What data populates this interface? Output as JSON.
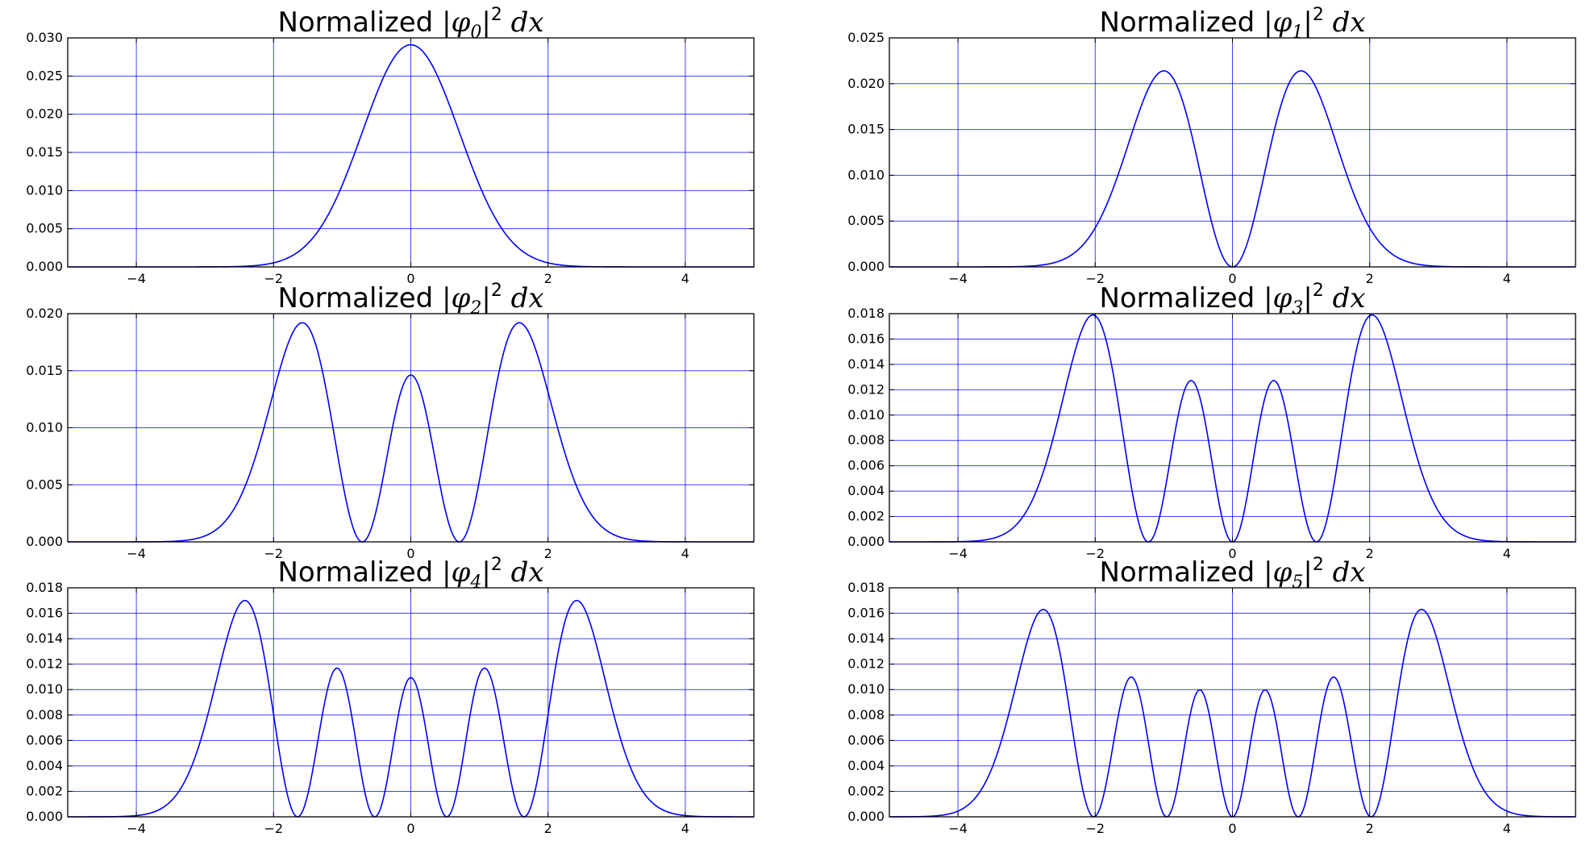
{
  "chart_data": [
    {
      "type": "line",
      "title": "Normalized |φ0|² dx",
      "title_parts": {
        "text": "Normalized",
        "symbol": "φ",
        "n": "0",
        "power": "2",
        "suffix": "dx"
      },
      "n": 0,
      "xlim": [
        -5,
        5
      ],
      "ylim": [
        0,
        0.03
      ],
      "x_ticks": [
        -4,
        -2,
        0,
        2,
        4
      ],
      "x_tick_labels": [
        "−4",
        "−2",
        "0",
        "2",
        "4"
      ],
      "y_ticks": [
        0.0,
        0.005,
        0.01,
        0.015,
        0.02,
        0.025,
        0.03
      ],
      "y_tick_labels": [
        "0.000",
        "0.005",
        "0.010",
        "0.015",
        "0.020",
        "0.025",
        "0.030"
      ],
      "peak": 0.0291,
      "grid": true,
      "line_color": "#0000ff",
      "series": [
        {
          "x_range": [
            -5,
            5
          ],
          "peaks": [
            [
              0,
              0.0291
            ]
          ]
        }
      ]
    },
    {
      "type": "line",
      "title": "Normalized |φ1|² dx",
      "title_parts": {
        "text": "Normalized",
        "symbol": "φ",
        "n": "1",
        "power": "2",
        "suffix": "dx"
      },
      "n": 1,
      "xlim": [
        -5,
        5
      ],
      "ylim": [
        0,
        0.025
      ],
      "x_ticks": [
        -4,
        -2,
        0,
        2,
        4
      ],
      "x_tick_labels": [
        "−4",
        "−2",
        "0",
        "2",
        "4"
      ],
      "y_ticks": [
        0.0,
        0.005,
        0.01,
        0.015,
        0.02,
        0.025
      ],
      "y_tick_labels": [
        "0.000",
        "0.005",
        "0.010",
        "0.015",
        "0.020",
        "0.025"
      ],
      "peak": 0.0214,
      "grid": true,
      "line_color": "#0000ff",
      "series": [
        {
          "x_range": [
            -5,
            5
          ],
          "peaks": [
            [
              -1.0,
              0.0214
            ],
            [
              1.0,
              0.0214
            ]
          ]
        }
      ]
    },
    {
      "type": "line",
      "title": "Normalized |φ2|² dx",
      "title_parts": {
        "text": "Normalized",
        "symbol": "φ",
        "n": "2",
        "power": "2",
        "suffix": "dx"
      },
      "n": 2,
      "xlim": [
        -5,
        5
      ],
      "ylim": [
        0,
        0.02
      ],
      "x_ticks": [
        -4,
        -2,
        0,
        2,
        4
      ],
      "x_tick_labels": [
        "−4",
        "−2",
        "0",
        "2",
        "4"
      ],
      "y_ticks": [
        0.0,
        0.005,
        0.01,
        0.015,
        0.02
      ],
      "y_tick_labels": [
        "0.000",
        "0.005",
        "0.010",
        "0.015",
        "0.020"
      ],
      "peak": 0.0192,
      "grid": true,
      "line_color": "#0000ff",
      "series": [
        {
          "x_range": [
            -5,
            5
          ],
          "peaks": [
            [
              -1.55,
              0.0192
            ],
            [
              0,
              0.0145
            ],
            [
              1.55,
              0.0192
            ]
          ]
        }
      ]
    },
    {
      "type": "line",
      "title": "Normalized |φ3|² dx",
      "title_parts": {
        "text": "Normalized",
        "symbol": "φ",
        "n": "3",
        "power": "2",
        "suffix": "dx"
      },
      "n": 3,
      "xlim": [
        -5,
        5
      ],
      "ylim": [
        0,
        0.018
      ],
      "x_ticks": [
        -4,
        -2,
        0,
        2,
        4
      ],
      "x_tick_labels": [
        "−4",
        "−2",
        "0",
        "2",
        "4"
      ],
      "y_ticks": [
        0.0,
        0.002,
        0.004,
        0.006,
        0.008,
        0.01,
        0.012,
        0.014,
        0.016,
        0.018
      ],
      "y_tick_labels": [
        "0.000",
        "0.002",
        "0.004",
        "0.006",
        "0.008",
        "0.010",
        "0.012",
        "0.014",
        "0.016",
        "0.018"
      ],
      "peak": 0.0179,
      "grid": true,
      "line_color": "#0000ff",
      "series": [
        {
          "x_range": [
            -5,
            5
          ],
          "peaks": [
            [
              -2.05,
              0.0179
            ],
            [
              -0.6,
              0.0127
            ],
            [
              0.6,
              0.0127
            ],
            [
              2.05,
              0.0179
            ]
          ]
        }
      ]
    },
    {
      "type": "line",
      "title": "Normalized |φ4|² dx",
      "title_parts": {
        "text": "Normalized",
        "symbol": "φ",
        "n": "4",
        "power": "2",
        "suffix": "dx"
      },
      "n": 4,
      "xlim": [
        -5,
        5
      ],
      "ylim": [
        0,
        0.018
      ],
      "x_ticks": [
        -4,
        -2,
        0,
        2,
        4
      ],
      "x_tick_labels": [
        "−4",
        "−2",
        "0",
        "2",
        "4"
      ],
      "y_ticks": [
        0.0,
        0.002,
        0.004,
        0.006,
        0.008,
        0.01,
        0.012,
        0.014,
        0.016,
        0.018
      ],
      "y_tick_labels": [
        "0.000",
        "0.002",
        "0.004",
        "0.006",
        "0.008",
        "0.010",
        "0.012",
        "0.014",
        "0.016",
        "0.018"
      ],
      "peak": 0.017,
      "grid": true,
      "line_color": "#0000ff",
      "series": [
        {
          "x_range": [
            -5,
            5
          ],
          "peaks": [
            [
              -2.45,
              0.017
            ],
            [
              -1.1,
              0.0117
            ],
            [
              0,
              0.0109
            ],
            [
              1.1,
              0.0117
            ],
            [
              2.45,
              0.017
            ]
          ]
        }
      ]
    },
    {
      "type": "line",
      "title": "Normalized |φ5|² dx",
      "title_parts": {
        "text": "Normalized",
        "symbol": "φ",
        "n": "5",
        "power": "2",
        "suffix": "dx"
      },
      "n": 5,
      "xlim": [
        -5,
        5
      ],
      "ylim": [
        0,
        0.018
      ],
      "x_ticks": [
        -4,
        -2,
        0,
        2,
        4
      ],
      "x_tick_labels": [
        "−4",
        "−2",
        "0",
        "2",
        "4"
      ],
      "y_ticks": [
        0.0,
        0.002,
        0.004,
        0.006,
        0.008,
        0.01,
        0.012,
        0.014,
        0.016,
        0.018
      ],
      "y_tick_labels": [
        "0.000",
        "0.002",
        "0.004",
        "0.006",
        "0.008",
        "0.010",
        "0.012",
        "0.014",
        "0.016",
        "0.018"
      ],
      "peak": 0.0163,
      "grid": true,
      "line_color": "#0000ff",
      "series": [
        {
          "x_range": [
            -5,
            5
          ],
          "peaks": [
            [
              -2.8,
              0.0163
            ],
            [
              -1.45,
              0.011
            ],
            [
              -0.5,
              0.01
            ],
            [
              0.5,
              0.01
            ],
            [
              1.45,
              0.011
            ],
            [
              2.8,
              0.0163
            ]
          ]
        }
      ]
    }
  ]
}
